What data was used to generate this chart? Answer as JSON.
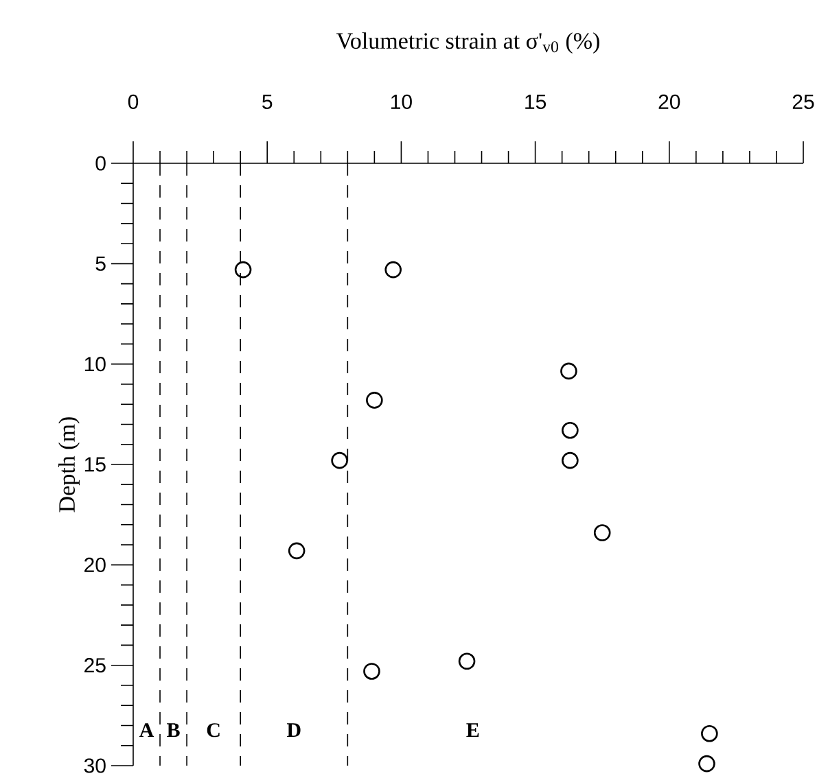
{
  "chart_data": {
    "type": "scatter",
    "xlabel": "Volumetric strain at σ'$_{v0}$ (%)",
    "ylabel": "Depth (m)",
    "series": [
      {
        "color": "#000000",
        "x": [
          4.1,
          9.7,
          9.0,
          7.7,
          6.1,
          8.9,
          16.25,
          16.3,
          16.3,
          17.5,
          12.45,
          21.5,
          21.4
        ],
        "values": [
          5.3,
          5.3,
          11.8,
          14.8,
          19.3,
          25.3,
          10.35,
          13.3,
          14.8,
          18.4,
          24.8,
          28.4,
          29.9
        ]
      }
    ],
    "xlim": [
      0,
      25
    ],
    "ylim": [
      30,
      0
    ],
    "xticks": [
      0,
      5,
      10,
      15,
      20,
      25
    ],
    "yticks": [
      0,
      5,
      10,
      15,
      20,
      25,
      30
    ],
    "marker": "circle",
    "grid": false,
    "ref_lines": [
      {
        "axis": "x",
        "value": 1,
        "line_style": "dashed"
      },
      {
        "axis": "x",
        "value": 2,
        "line_style": "dashed"
      },
      {
        "axis": "x",
        "value": 4,
        "line_style": "dashed"
      },
      {
        "axis": "x",
        "value": 8,
        "line_style": "dashed"
      }
    ],
    "annotations": [
      "A",
      "B",
      "C",
      "D",
      "E"
    ]
  }
}
